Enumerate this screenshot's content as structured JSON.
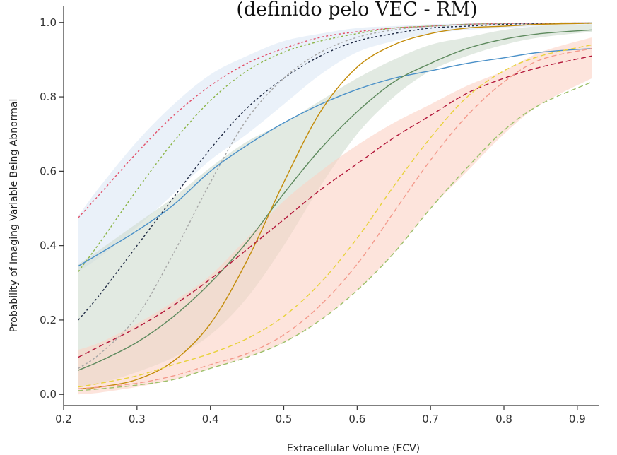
{
  "chart_data": {
    "type": "line",
    "title": "(definido pelo VEC - RM)",
    "xlabel": "Extracellular Volume (ECV)",
    "ylabel": "Probability of Imaging Variable Being Abnormal",
    "xlim": [
      0.2,
      0.93
    ],
    "ylim": [
      -0.03,
      1.03
    ],
    "xticks": [
      "0.2",
      "0.3",
      "0.4",
      "0.5",
      "0.6",
      "0.7",
      "0.8",
      "0.9"
    ],
    "yticks": [
      "0.0",
      "0.2",
      "0.4",
      "0.6",
      "0.8",
      "1.0"
    ],
    "grid": false,
    "legend": "none",
    "x": [
      0.22,
      0.25,
      0.3,
      0.35,
      0.4,
      0.45,
      0.5,
      0.55,
      0.6,
      0.65,
      0.7,
      0.75,
      0.8,
      0.85,
      0.92
    ],
    "bands": [
      {
        "color": "#dce8f5",
        "upper": [
          0.48,
          0.56,
          0.68,
          0.78,
          0.86,
          0.91,
          0.95,
          0.97,
          0.985,
          0.99,
          0.995,
          0.997,
          0.998,
          0.999,
          1.0
        ],
        "lower": [
          0.33,
          0.37,
          0.45,
          0.54,
          0.63,
          0.7,
          0.78,
          0.86,
          0.92,
          0.95,
          0.97,
          0.98,
          0.985,
          0.99,
          0.995
        ]
      },
      {
        "color": "#cfdccf",
        "upper": [
          0.35,
          0.39,
          0.46,
          0.53,
          0.61,
          0.68,
          0.73,
          0.79,
          0.85,
          0.9,
          0.94,
          0.96,
          0.98,
          0.99,
          0.995
        ],
        "lower": [
          0.02,
          0.03,
          0.06,
          0.1,
          0.16,
          0.26,
          0.4,
          0.56,
          0.7,
          0.8,
          0.87,
          0.91,
          0.94,
          0.96,
          0.975
        ]
      },
      {
        "color": "#fbd2c4",
        "upper": [
          0.12,
          0.14,
          0.19,
          0.25,
          0.32,
          0.42,
          0.52,
          0.6,
          0.67,
          0.73,
          0.78,
          0.83,
          0.87,
          0.92,
          0.96
        ],
        "lower": [
          0.0,
          0.005,
          0.02,
          0.04,
          0.07,
          0.1,
          0.14,
          0.2,
          0.28,
          0.38,
          0.5,
          0.6,
          0.7,
          0.78,
          0.85
        ]
      }
    ],
    "series": [
      {
        "color": "#e2516a",
        "dash": "3,3",
        "values": [
          0.475,
          0.54,
          0.65,
          0.75,
          0.83,
          0.89,
          0.93,
          0.96,
          0.975,
          0.985,
          0.99,
          0.995,
          0.997,
          0.998,
          0.999
        ]
      },
      {
        "color": "#8db54a",
        "dash": "3,3",
        "values": [
          0.33,
          0.41,
          0.55,
          0.68,
          0.79,
          0.87,
          0.92,
          0.95,
          0.97,
          0.985,
          0.99,
          0.995,
          0.997,
          0.998,
          0.999
        ]
      },
      {
        "color": "#1f2a44",
        "dash": "3,3",
        "values": [
          0.2,
          0.27,
          0.4,
          0.53,
          0.66,
          0.77,
          0.85,
          0.91,
          0.95,
          0.97,
          0.985,
          0.99,
          0.995,
          0.997,
          0.998
        ]
      },
      {
        "color": "#a6a6a6",
        "dash": "3,3",
        "values": [
          0.07,
          0.11,
          0.21,
          0.38,
          0.57,
          0.74,
          0.85,
          0.92,
          0.96,
          0.98,
          0.99,
          0.995,
          0.997,
          0.998,
          0.999
        ]
      },
      {
        "color": "#4a90c8",
        "dash": "",
        "values": [
          0.345,
          0.38,
          0.44,
          0.51,
          0.6,
          0.67,
          0.73,
          0.78,
          0.82,
          0.85,
          0.87,
          0.89,
          0.905,
          0.92,
          0.93
        ]
      },
      {
        "color": "#5e8a5e",
        "dash": "",
        "values": [
          0.065,
          0.09,
          0.14,
          0.21,
          0.3,
          0.41,
          0.54,
          0.66,
          0.76,
          0.84,
          0.89,
          0.93,
          0.955,
          0.97,
          0.98
        ]
      },
      {
        "color": "#c38b08",
        "dash": "",
        "values": [
          0.015,
          0.02,
          0.04,
          0.09,
          0.19,
          0.36,
          0.57,
          0.76,
          0.88,
          0.94,
          0.97,
          0.985,
          0.99,
          0.995,
          0.998
        ]
      },
      {
        "color": "#b3173a",
        "dash": "7,4",
        "values": [
          0.1,
          0.13,
          0.18,
          0.24,
          0.31,
          0.39,
          0.47,
          0.55,
          0.62,
          0.69,
          0.75,
          0.81,
          0.85,
          0.88,
          0.91
        ]
      },
      {
        "color": "#e8d23c",
        "dash": "7,4",
        "values": [
          0.02,
          0.03,
          0.05,
          0.08,
          0.11,
          0.15,
          0.21,
          0.3,
          0.42,
          0.56,
          0.69,
          0.8,
          0.87,
          0.91,
          0.94
        ]
      },
      {
        "color": "#f39a8c",
        "dash": "7,4",
        "values": [
          0.015,
          0.02,
          0.03,
          0.05,
          0.08,
          0.11,
          0.16,
          0.24,
          0.35,
          0.49,
          0.63,
          0.75,
          0.84,
          0.9,
          0.93
        ]
      },
      {
        "color": "#9dc06a",
        "dash": "7,4",
        "values": [
          0.01,
          0.015,
          0.025,
          0.04,
          0.07,
          0.1,
          0.14,
          0.2,
          0.28,
          0.38,
          0.5,
          0.61,
          0.71,
          0.78,
          0.84
        ]
      }
    ]
  }
}
